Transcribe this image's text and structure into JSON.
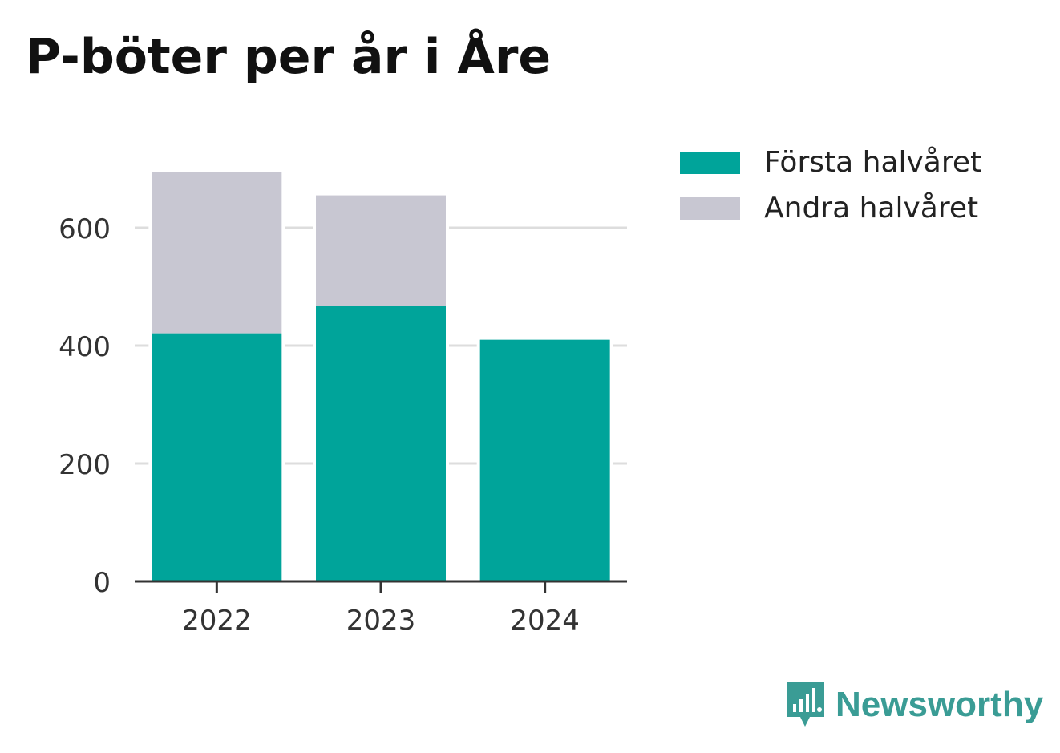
{
  "title": "P-böter per år i Åre",
  "brand": {
    "name": "Newsworthy",
    "icon": "newsworthy-logo-icon",
    "color": "#3a9c95"
  },
  "chart_data": {
    "type": "bar",
    "stacked": true,
    "categories": [
      "2022",
      "2023",
      "2024"
    ],
    "series": [
      {
        "name": "Första halvåret",
        "color": "#00a49a",
        "values": [
          421,
          468,
          410
        ]
      },
      {
        "name": "Andra halvåret",
        "color": "#c8c7d2",
        "values": [
          274,
          187,
          0
        ]
      }
    ],
    "yticks": [
      0,
      200,
      400,
      600
    ],
    "ylim": [
      0,
      700
    ],
    "grid": true,
    "legend": "top-right",
    "xlabel": "",
    "ylabel": ""
  }
}
